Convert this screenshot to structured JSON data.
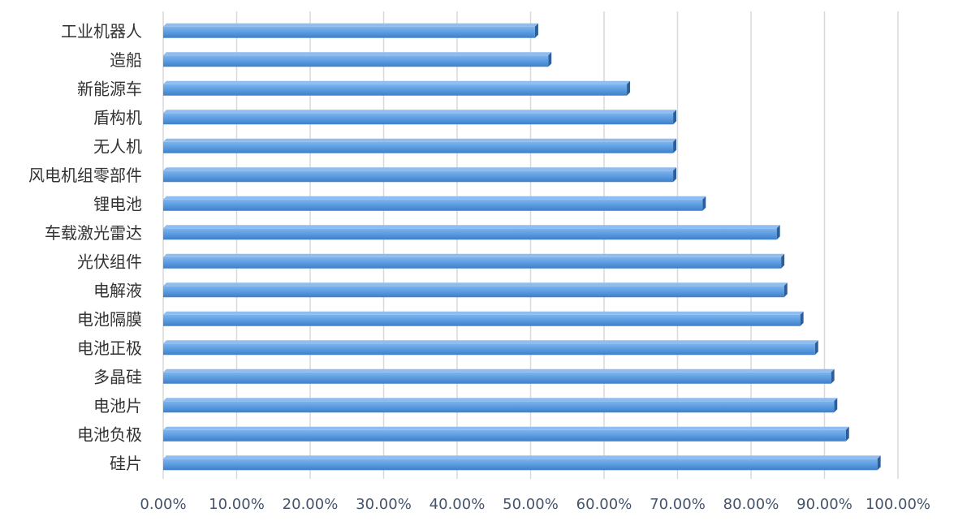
{
  "chart_data": {
    "type": "bar",
    "orientation": "horizontal",
    "color": "#4a90d9",
    "categories": [
      "工业机器人",
      "造船",
      "新能源车",
      "盾构机",
      "无人机",
      "风电机组零部件",
      "锂电池",
      "车载激光雷达",
      "光伏组件",
      "电解液",
      "电池隔膜",
      "电池正极",
      "多晶硅",
      "电池片",
      "电池负极",
      "硅片"
    ],
    "values": [
      50.6,
      52.4,
      63.1,
      69.4,
      69.4,
      69.4,
      73.4,
      83.5,
      84.1,
      84.5,
      86.7,
      88.7,
      90.9,
      91.3,
      92.9,
      97.2
    ],
    "xlim": [
      0,
      100
    ],
    "xticks": [
      {
        "value": 0,
        "label": "0.00%"
      },
      {
        "value": 10,
        "label": "10.00%"
      },
      {
        "value": 20,
        "label": "20.00%"
      },
      {
        "value": 30,
        "label": "30.00%"
      },
      {
        "value": 40,
        "label": "40.00%"
      },
      {
        "value": 50,
        "label": "50.00%"
      },
      {
        "value": 60,
        "label": "60.00%"
      },
      {
        "value": 70,
        "label": "70.00%"
      },
      {
        "value": 80,
        "label": "80.00%"
      },
      {
        "value": 90,
        "label": "90.00%"
      },
      {
        "value": 100,
        "label": "100.00%"
      }
    ],
    "grid": true
  }
}
